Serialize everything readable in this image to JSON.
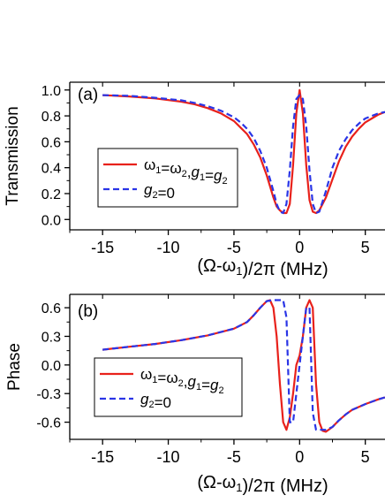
{
  "chart_data": [
    {
      "type": "line",
      "panel_label": "(a)",
      "xlabel_parts": [
        "(Ω-ω",
        "1",
        ")/2π (MHz)"
      ],
      "ylabel": "Transmission",
      "xlim": [
        -17.5,
        6.5
      ],
      "ylim": [
        -0.08,
        1.06
      ],
      "xticks": [
        -15,
        -10,
        -5,
        0,
        5
      ],
      "xtick_labels": [
        "-15",
        "-10",
        "-5",
        "0",
        "5"
      ],
      "yticks": [
        0.0,
        0.2,
        0.4,
        0.6,
        0.8,
        1.0
      ],
      "ytick_labels": [
        "0.0",
        "0.2",
        "0.4",
        "0.6",
        "0.8",
        "1.0"
      ],
      "grid": false,
      "legend_position": "center-left",
      "series": [
        {
          "legend_key": "equal",
          "color": "#e8211b",
          "dash": "solid",
          "x": [
            -15,
            -13,
            -11,
            -9,
            -8,
            -7,
            -6,
            -5,
            -4.5,
            -4,
            -3.5,
            -3,
            -2.5,
            -2,
            -1.75,
            -1.5,
            -1.25,
            -1,
            -0.75,
            -0.5,
            -0.25,
            0,
            0.25,
            0.5,
            0.75,
            1,
            1.25,
            1.5,
            2,
            2.5,
            3,
            3.5,
            4,
            4.5,
            5,
            5.5,
            6,
            6.5
          ],
          "y": [
            0.96,
            0.95,
            0.935,
            0.91,
            0.89,
            0.86,
            0.82,
            0.76,
            0.71,
            0.66,
            0.58,
            0.48,
            0.34,
            0.17,
            0.1,
            0.07,
            0.05,
            0.05,
            0.12,
            0.42,
            0.82,
            1.0,
            0.82,
            0.42,
            0.15,
            0.06,
            0.05,
            0.07,
            0.17,
            0.31,
            0.45,
            0.56,
            0.64,
            0.7,
            0.75,
            0.78,
            0.81,
            0.83
          ]
        },
        {
          "legend_key": "g2zero",
          "color": "#2a35e6",
          "dash": "dashed",
          "x": [
            -15,
            -13,
            -11,
            -9,
            -8,
            -7,
            -6,
            -5,
            -4.5,
            -4,
            -3.5,
            -3,
            -2.5,
            -2,
            -1.75,
            -1.5,
            -1.25,
            -1,
            -0.75,
            -0.5,
            -0.25,
            0,
            0.25,
            0.5,
            0.75,
            1,
            1.25,
            1.5,
            2,
            2.5,
            3,
            3.5,
            4,
            4.5,
            5,
            5.5,
            6,
            6.5
          ],
          "y": [
            0.96,
            0.955,
            0.94,
            0.92,
            0.9,
            0.875,
            0.84,
            0.79,
            0.75,
            0.7,
            0.63,
            0.53,
            0.4,
            0.22,
            0.12,
            0.06,
            0.05,
            0.12,
            0.38,
            0.72,
            0.93,
            0.96,
            0.93,
            0.72,
            0.38,
            0.12,
            0.05,
            0.06,
            0.22,
            0.4,
            0.53,
            0.62,
            0.69,
            0.74,
            0.78,
            0.8,
            0.82,
            0.83
          ]
        }
      ]
    },
    {
      "type": "line",
      "panel_label": "(b)",
      "xlabel_parts": [
        "(Ω-ω",
        "1",
        ")/2π (MHz)"
      ],
      "ylabel": "Phase",
      "xlim": [
        -17.5,
        6.5
      ],
      "ylim": [
        -0.78,
        0.74
      ],
      "xticks": [
        -15,
        -10,
        -5,
        0,
        5
      ],
      "xtick_labels": [
        "-15",
        "-10",
        "-5",
        "0",
        "5"
      ],
      "yticks": [
        -0.6,
        -0.3,
        0.0,
        0.3,
        0.6
      ],
      "ytick_labels": [
        "-0.6",
        "-0.3",
        "0.0",
        "0.3",
        "0.6"
      ],
      "grid": false,
      "legend_position": "center-left",
      "series": [
        {
          "legend_key": "equal",
          "color": "#e8211b",
          "dash": "solid",
          "x": [
            -15,
            -13,
            -11,
            -9,
            -7,
            -5,
            -4,
            -3.5,
            -3,
            -2.5,
            -2.25,
            -2,
            -1.75,
            -1.5,
            -1.25,
            -1,
            -0.75,
            -0.5,
            -0.25,
            0,
            0.25,
            0.5,
            0.75,
            1,
            1.25,
            1.5,
            1.75,
            2,
            2.5,
            3,
            3.5,
            4,
            5,
            6,
            6.5
          ],
          "y": [
            0.16,
            0.19,
            0.22,
            0.26,
            0.31,
            0.38,
            0.45,
            0.52,
            0.6,
            0.67,
            0.68,
            0.6,
            0.3,
            -0.2,
            -0.6,
            -0.68,
            -0.55,
            -0.3,
            0.0,
            0.1,
            0.3,
            0.6,
            0.68,
            0.6,
            -0.2,
            -0.6,
            -0.69,
            -0.7,
            -0.65,
            -0.58,
            -0.52,
            -0.47,
            -0.41,
            -0.36,
            -0.34
          ]
        },
        {
          "legend_key": "g2zero",
          "color": "#2a35e6",
          "dash": "dashed",
          "x": [
            -15,
            -13,
            -11,
            -9,
            -7,
            -5,
            -4,
            -3.5,
            -3,
            -2.5,
            -2,
            -1.5,
            -1.25,
            -1,
            -0.75,
            -0.5,
            -0.25,
            0,
            0.25,
            0.5,
            0.75,
            1,
            1.25,
            1.5,
            1.75,
            2,
            2.5,
            3,
            3.5,
            4,
            5,
            6,
            6.5
          ],
          "y": [
            0.16,
            0.19,
            0.22,
            0.26,
            0.31,
            0.38,
            0.45,
            0.52,
            0.6,
            0.67,
            0.68,
            0.68,
            0.68,
            0.5,
            -0.6,
            -0.6,
            -0.3,
            0.0,
            0.3,
            0.6,
            0.6,
            -0.5,
            -0.68,
            -0.68,
            -0.68,
            -0.68,
            -0.65,
            -0.58,
            -0.52,
            -0.47,
            -0.41,
            -0.36,
            -0.34
          ]
        }
      ]
    }
  ],
  "legend": {
    "entries": [
      {
        "key": "equal",
        "parts": [
          {
            "t": "ω",
            "sub": false
          },
          {
            "t": "1",
            "sub": true
          },
          {
            "t": "=ω",
            "sub": false
          },
          {
            "t": "2",
            "sub": true
          },
          {
            "t": ",",
            "sub": false
          },
          {
            "t": "g",
            "sub": false,
            "italic": true
          },
          {
            "t": "1",
            "sub": true
          },
          {
            "t": "=",
            "sub": false
          },
          {
            "t": "g",
            "sub": false,
            "italic": true
          },
          {
            "t": "2",
            "sub": true
          }
        ]
      },
      {
        "key": "g2zero",
        "parts": [
          {
            "t": "g",
            "sub": false,
            "italic": true
          },
          {
            "t": "2",
            "sub": true
          },
          {
            "t": "=0",
            "sub": false
          }
        ]
      }
    ]
  }
}
